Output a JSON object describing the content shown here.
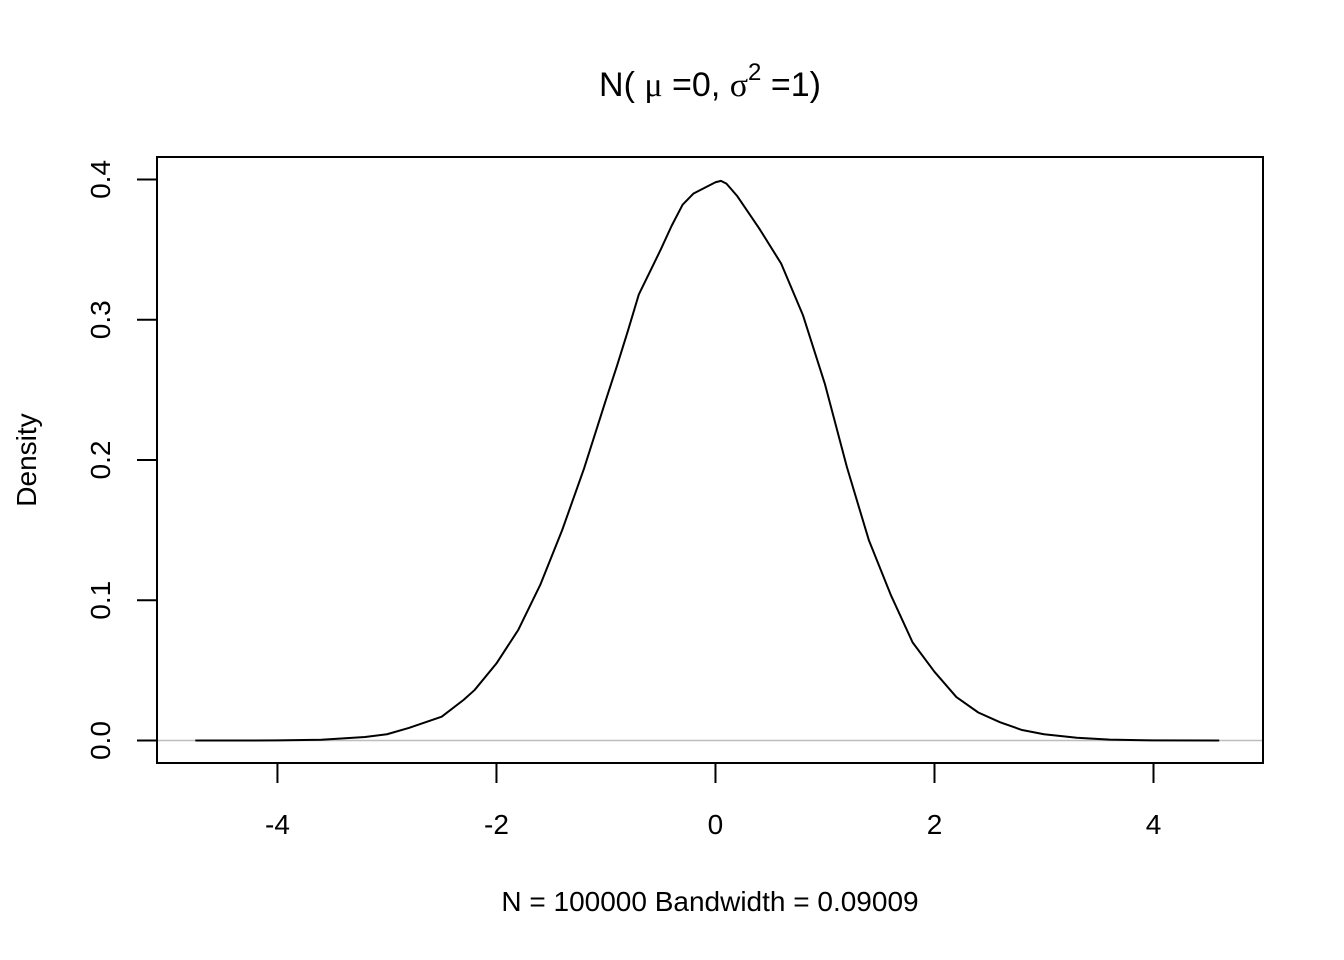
{
  "chart_data": {
    "type": "line",
    "title": {
      "prefix": "N( ",
      "mu": "μ",
      "mid": " =0, ",
      "sigma": "σ",
      "sup": "2",
      "suffix": " =1)"
    },
    "xlabel": "N = 100000   Bandwidth = 0.09009",
    "ylabel": "Density",
    "xlim": [
      -5.1,
      5.0
    ],
    "ylim": [
      -0.016,
      0.416
    ],
    "x_ticks": [
      -4,
      -2,
      0,
      2,
      4
    ],
    "x_tick_labels": [
      "-4",
      "-2",
      "0",
      "2",
      "4"
    ],
    "y_ticks": [
      0.0,
      0.1,
      0.2,
      0.3,
      0.4
    ],
    "y_tick_labels": [
      "0.0",
      "0.1",
      "0.2",
      "0.3",
      "0.4"
    ],
    "baseline": 0,
    "grid": false,
    "series": [
      {
        "x": [
          -4.75,
          -4.0,
          -3.6,
          -3.2,
          -3.0,
          -2.8,
          -2.5,
          -2.3,
          -2.2,
          -2.0,
          -1.8,
          -1.6,
          -1.4,
          -1.2,
          -1.0,
          -0.9,
          -0.8,
          -0.7,
          -0.6,
          -0.5,
          -0.4,
          -0.3,
          -0.2,
          -0.1,
          0.0,
          0.05,
          0.1,
          0.2,
          0.4,
          0.6,
          0.8,
          1.0,
          1.2,
          1.4,
          1.6,
          1.8,
          2.0,
          2.2,
          2.4,
          2.6,
          2.8,
          3.0,
          3.3,
          3.6,
          4.0,
          4.6
        ],
        "y": [
          0.0,
          0.0001,
          0.0006,
          0.0025,
          0.0045,
          0.009,
          0.017,
          0.029,
          0.036,
          0.055,
          0.079,
          0.111,
          0.15,
          0.194,
          0.243,
          0.267,
          0.292,
          0.318,
          0.334,
          0.35,
          0.367,
          0.382,
          0.39,
          0.394,
          0.398,
          0.399,
          0.397,
          0.388,
          0.365,
          0.34,
          0.303,
          0.254,
          0.195,
          0.143,
          0.104,
          0.07,
          0.049,
          0.031,
          0.02,
          0.013,
          0.0075,
          0.0045,
          0.002,
          0.0007,
          0.0001,
          0.0
        ]
      }
    ]
  }
}
